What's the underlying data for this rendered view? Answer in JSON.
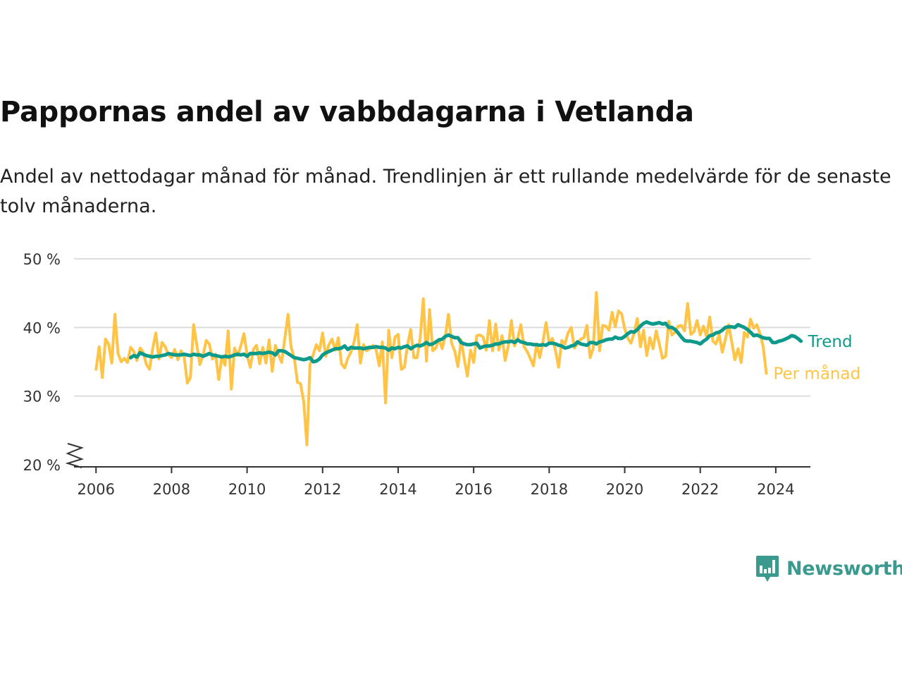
{
  "title": "Pappornas andel av vabbdagarna i Vetlanda",
  "subtitle": "Andel av nettodagar månad för månad. Trendlinjen är ett rullande medelvärde för de senaste tolv månaderna.",
  "brand": {
    "name": "Newsworthy",
    "color": "#3a9a8e",
    "logo_icon": "bar-chart-speech-bubble-icon"
  },
  "colors": {
    "monthly": "#ffc445",
    "trend": "#0e9a8a",
    "grid": "#dddddd",
    "axis": "#333333"
  },
  "chart_data": {
    "type": "line",
    "title": "Pappornas andel av vabbdagarna i Vetlanda",
    "xlabel": "",
    "ylabel": "",
    "ylim": [
      20,
      50
    ],
    "xlim": [
      "2005-06",
      "2024-12"
    ],
    "y_axis_break": true,
    "grid": "horizontal",
    "legend": "direct labels at line ends",
    "y_ticks": [
      {
        "value": 20,
        "label": "20 %"
      },
      {
        "value": 30,
        "label": "30 %"
      },
      {
        "value": 40,
        "label": "40 %"
      },
      {
        "value": 50,
        "label": "50 %"
      }
    ],
    "x_ticks": [
      "2006",
      "2008",
      "2010",
      "2012",
      "2014",
      "2016",
      "2018",
      "2020",
      "2022",
      "2024"
    ],
    "series": [
      {
        "name": "Per månad",
        "color": "#ffc445",
        "start": "2006-01",
        "frequency": "monthly",
        "values": [
          33.9,
          37.2,
          32.7,
          38.3,
          37.6,
          34.8,
          41.9,
          36.2,
          35.0,
          35.5,
          34.9,
          37.1,
          36.5,
          35.2,
          37.0,
          36.4,
          34.6,
          33.9,
          36.9,
          39.2,
          35.4,
          37.8,
          37.2,
          36.0,
          35.6,
          36.8,
          35.3,
          36.6,
          35.8,
          31.9,
          32.7,
          40.4,
          37.5,
          34.6,
          35.9,
          38.1,
          37.6,
          35.4,
          36.1,
          32.4,
          35.8,
          34.5,
          39.5,
          31.0,
          37.0,
          35.9,
          37.3,
          39.1,
          36.0,
          34.2,
          36.8,
          37.4,
          34.7,
          37.1,
          34.8,
          38.2,
          33.6,
          37.4,
          36.0,
          34.9,
          38.4,
          41.9,
          37.1,
          35.6,
          32.0,
          31.8,
          29.2,
          22.9,
          34.6,
          36.0,
          37.5,
          36.6,
          39.2,
          35.8,
          37.5,
          38.3,
          36.7,
          38.5,
          34.7,
          34.1,
          35.5,
          36.4,
          37.9,
          40.4,
          34.8,
          37.5,
          36.6,
          36.9,
          37.4,
          36.8,
          34.4,
          37.9,
          29.0,
          39.6,
          35.6,
          38.6,
          39.0,
          33.9,
          34.2,
          37.5,
          39.7,
          35.6,
          35.6,
          38.4,
          44.2,
          35.1,
          42.6,
          36.6,
          37.0,
          38.3,
          36.9,
          38.8,
          41.9,
          37.7,
          36.5,
          34.3,
          38.2,
          35.4,
          32.9,
          36.7,
          34.9,
          38.8,
          38.9,
          38.6,
          36.7,
          41.0,
          36.6,
          40.5,
          36.7,
          38.8,
          35.2,
          37.3,
          41.0,
          37.3,
          38.4,
          40.4,
          37.2,
          36.5,
          35.5,
          34.4,
          37.6,
          35.6,
          37.9,
          40.7,
          37.7,
          38.4,
          36.6,
          34.2,
          38.1,
          37.6,
          39.2,
          40.0,
          37.0,
          37.6,
          38.3,
          38.5,
          40.3,
          35.6,
          37.0,
          45.1,
          36.6,
          40.3,
          40.2,
          39.6,
          42.2,
          40.1,
          42.4,
          42.0,
          39.8,
          38.4,
          37.7,
          39.2,
          41.3,
          37.2,
          39.6,
          35.9,
          38.5,
          36.9,
          39.5,
          37.6,
          35.5,
          35.8,
          40.9,
          38.9,
          39.3,
          40.2,
          40.3,
          39.5,
          43.5,
          39.0,
          39.4,
          41.0,
          38.9,
          40.2,
          38.7,
          41.5,
          38.0,
          37.6,
          39.0,
          36.4,
          38.3,
          40.4,
          37.9,
          35.3,
          36.9,
          34.9,
          39.3,
          38.6,
          41.2,
          39.9,
          40.4,
          39.1,
          37.2,
          33.3
        ]
      },
      {
        "name": "Trend",
        "color": "#0e9a8a",
        "start": "2006-12",
        "frequency": "monthly",
        "values": [
          35.6,
          35.9,
          35.7,
          36.3,
          36.1,
          35.9,
          35.8,
          35.7,
          35.8,
          35.8,
          35.9,
          36.0,
          36.2,
          36.1,
          36.0,
          36.0,
          36.0,
          36.1,
          36.0,
          35.9,
          36.1,
          36.0,
          36.0,
          35.8,
          36.0,
          36.2,
          36.0,
          35.9,
          35.8,
          35.7,
          35.8,
          35.7,
          35.8,
          36.0,
          36.1,
          36.0,
          36.1,
          35.8,
          36.2,
          36.2,
          36.2,
          36.3,
          36.2,
          36.3,
          36.4,
          36.3,
          36.0,
          36.6,
          36.6,
          36.5,
          36.2,
          35.9,
          35.6,
          35.5,
          35.4,
          35.3,
          35.4,
          35.6,
          35.0,
          35.1,
          35.4,
          36.0,
          36.3,
          36.5,
          36.7,
          36.9,
          36.9,
          37.0,
          37.3,
          36.8,
          37.1,
          37.0,
          37.0,
          37.0,
          36.9,
          37.0,
          37.1,
          37.1,
          37.2,
          37.1,
          37.1,
          37.0,
          36.7,
          37.0,
          36.9,
          37.1,
          37.0,
          37.2,
          37.3,
          36.9,
          37.2,
          37.4,
          37.3,
          37.5,
          37.8,
          37.5,
          37.6,
          37.9,
          38.2,
          38.3,
          38.7,
          38.9,
          38.7,
          38.5,
          38.5,
          37.8,
          37.6,
          37.5,
          37.5,
          37.6,
          37.7,
          37.0,
          37.2,
          37.3,
          37.3,
          37.4,
          37.6,
          37.6,
          37.8,
          37.9,
          37.9,
          38.0,
          37.8,
          38.2,
          37.9,
          37.8,
          37.6,
          37.6,
          37.5,
          37.5,
          37.4,
          37.5,
          37.4,
          37.7,
          37.7,
          37.6,
          37.4,
          37.3,
          37.0,
          37.1,
          37.3,
          37.4,
          37.9,
          37.6,
          37.5,
          37.4,
          37.8,
          37.8,
          37.6,
          37.9,
          38.0,
          38.2,
          38.3,
          38.3,
          38.6,
          38.4,
          38.4,
          38.7,
          39.1,
          39.4,
          39.3,
          39.7,
          40.2,
          40.6,
          40.8,
          40.6,
          40.5,
          40.6,
          40.7,
          40.5,
          40.6,
          40.0,
          40.0,
          39.7,
          39.2,
          38.6,
          38.1,
          38.0,
          38.0,
          37.9,
          37.8,
          37.6,
          38.0,
          38.3,
          38.8,
          38.9,
          39.2,
          39.3,
          39.6,
          40.0,
          40.1,
          40.1,
          40.0,
          40.4,
          40.2,
          40.0,
          39.7,
          39.3,
          38.8,
          38.9,
          38.7,
          38.5,
          38.4,
          38.4,
          37.8,
          37.8,
          38.0,
          38.1,
          38.3,
          38.5,
          38.8,
          38.7,
          38.4,
          38.0
        ]
      }
    ]
  }
}
